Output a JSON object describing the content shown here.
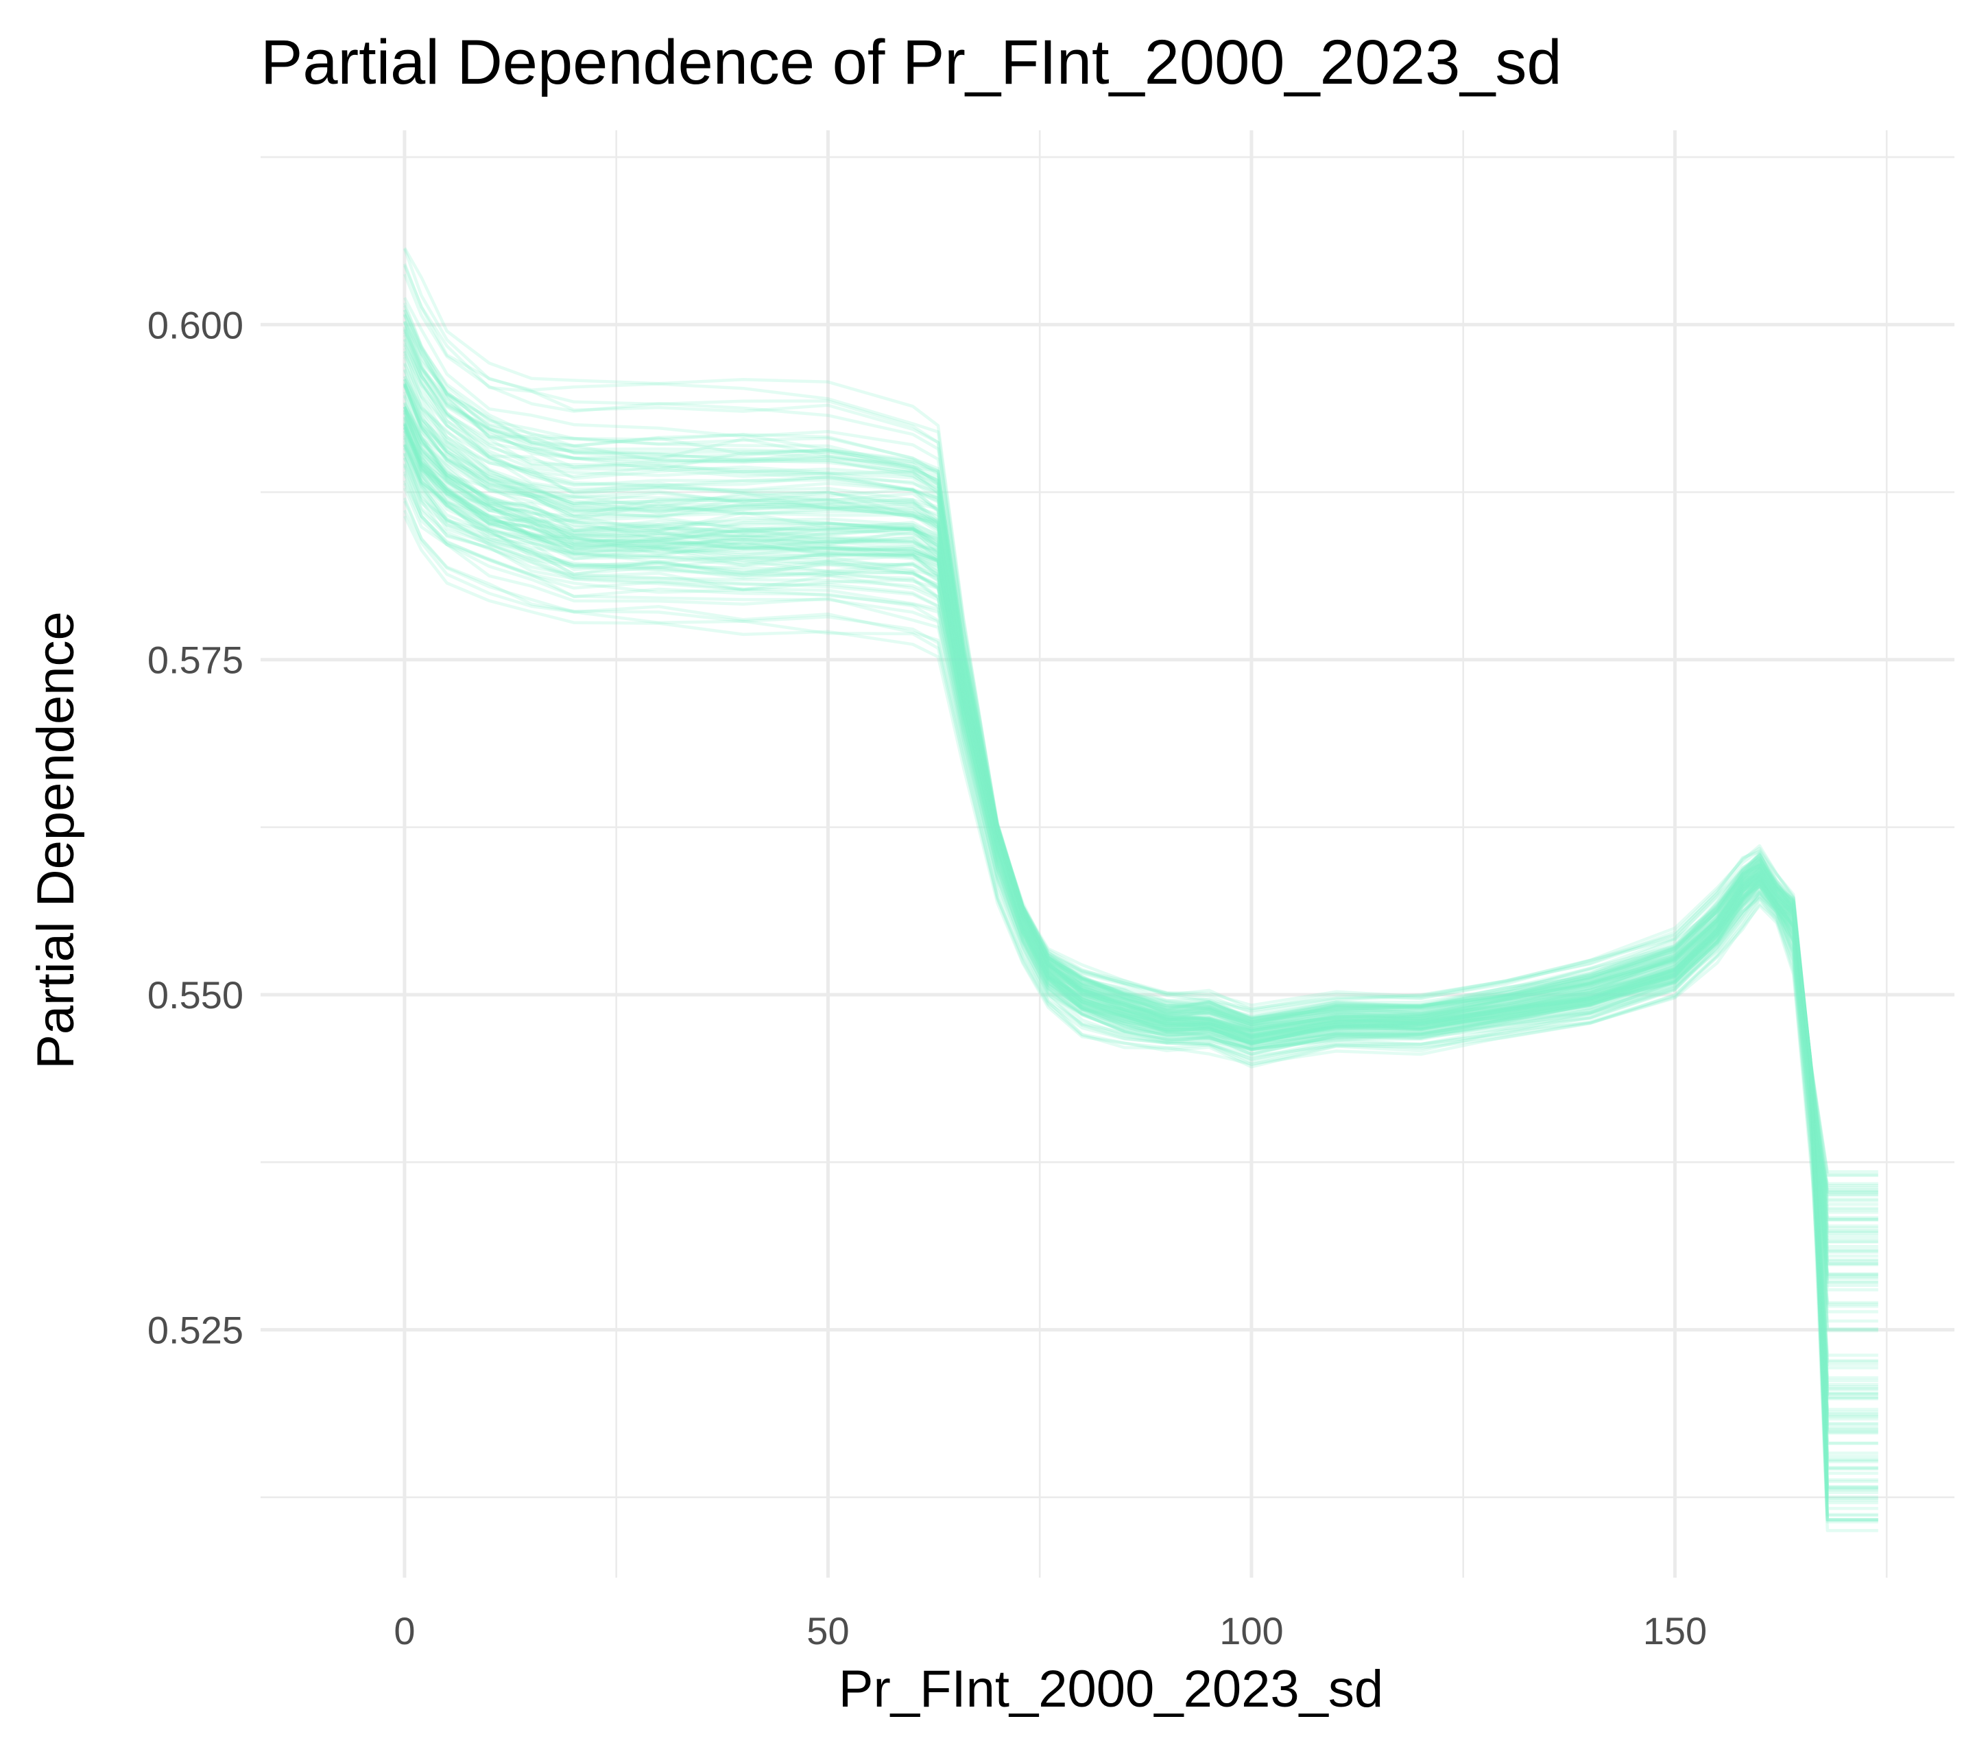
{
  "chart_data": {
    "type": "line",
    "title": "Partial Dependence of Pr_FInt_2000_2023_sd",
    "xlabel": "Pr_FInt_2000_2023_sd",
    "ylabel": "Partial Dependence",
    "xlim": [
      -17,
      183
    ],
    "ylim": [
      0.5065,
      0.6145
    ],
    "x_ticks": [
      0,
      50,
      100,
      150
    ],
    "x_tick_labels": [
      "0",
      "50",
      "100",
      "150"
    ],
    "y_ticks": [
      0.525,
      0.55,
      0.575,
      0.6
    ],
    "y_tick_labels": [
      "0.525",
      "0.550",
      "0.575",
      "0.600"
    ],
    "x_minor_ticks": [
      25,
      75,
      125,
      175
    ],
    "y_minor_ticks": [
      0.5125,
      0.5375,
      0.5625,
      0.5875,
      0.6125
    ],
    "grid": true,
    "legend": "none",
    "line_color": "#7ff0c8",
    "curve_count": 120,
    "x": [
      0,
      2,
      5,
      10,
      15,
      20,
      30,
      40,
      50,
      60,
      63,
      66,
      70,
      73,
      76,
      80,
      85,
      90,
      95,
      100,
      110,
      120,
      130,
      140,
      150,
      155,
      158,
      160,
      162,
      164,
      166,
      168,
      171,
      174
    ],
    "series_envelope": {
      "upper": [
        0.611,
        0.608,
        0.604,
        0.601,
        0.6,
        0.6,
        0.6,
        0.6,
        0.6,
        0.597,
        0.596,
        0.58,
        0.563,
        0.557,
        0.554,
        0.553,
        0.552,
        0.551,
        0.551,
        0.55,
        0.551,
        0.551,
        0.552,
        0.554,
        0.556,
        0.559,
        0.561,
        0.562,
        0.56,
        0.558,
        0.545,
        0.537,
        0.537,
        0.537
      ],
      "typical": [
        0.594,
        0.591,
        0.589,
        0.587,
        0.586,
        0.585,
        0.585,
        0.585,
        0.585,
        0.585,
        0.584,
        0.573,
        0.562,
        0.556,
        0.552,
        0.55,
        0.549,
        0.548,
        0.548,
        0.547,
        0.548,
        0.548,
        0.549,
        0.55,
        0.552,
        0.555,
        0.558,
        0.559,
        0.557,
        0.556,
        0.545,
        0.525,
        0.525,
        0.525
      ],
      "lower": [
        0.583,
        0.58,
        0.578,
        0.577,
        0.576,
        0.575,
        0.575,
        0.574,
        0.574,
        0.573,
        0.572,
        0.565,
        0.555,
        0.551,
        0.548,
        0.546,
        0.545,
        0.545,
        0.545,
        0.544,
        0.545,
        0.545,
        0.546,
        0.547,
        0.549,
        0.552,
        0.554,
        0.556,
        0.555,
        0.55,
        0.535,
        0.51,
        0.51,
        0.51
      ]
    }
  }
}
